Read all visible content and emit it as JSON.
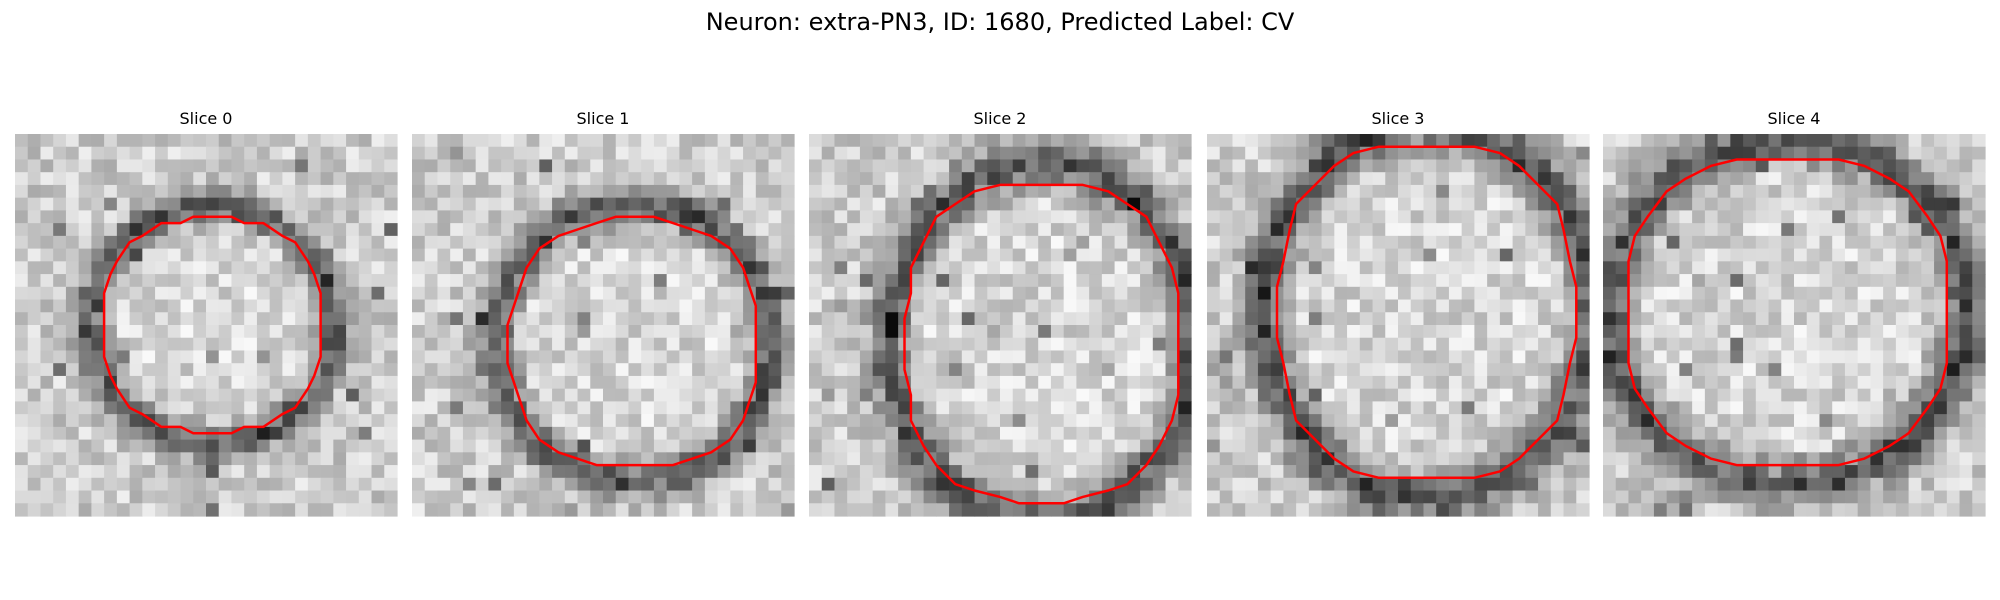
{
  "title": "Neuron: extra-PN3, ID: 1680, Predicted Label: CV",
  "panels": [
    {
      "title": "Slice 0"
    },
    {
      "title": "Slice 1"
    },
    {
      "title": "Slice 2"
    },
    {
      "title": "Slice 3"
    },
    {
      "title": "Slice 4"
    }
  ]
}
